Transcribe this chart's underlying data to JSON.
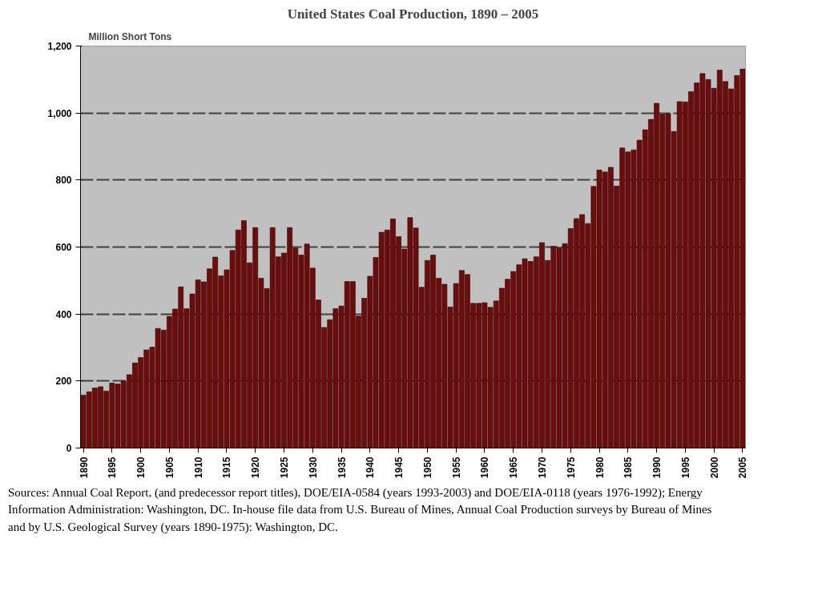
{
  "chart_data": {
    "type": "bar",
    "title": "United States Coal Production, 1890 – 2005",
    "ylabel": "Million Short Tons",
    "x": [
      1890,
      1891,
      1892,
      1893,
      1894,
      1895,
      1896,
      1897,
      1898,
      1899,
      1900,
      1901,
      1902,
      1903,
      1904,
      1905,
      1906,
      1907,
      1908,
      1909,
      1910,
      1911,
      1912,
      1913,
      1914,
      1915,
      1916,
      1917,
      1918,
      1919,
      1920,
      1921,
      1922,
      1923,
      1924,
      1925,
      1926,
      1927,
      1928,
      1929,
      1930,
      1931,
      1932,
      1933,
      1934,
      1935,
      1936,
      1937,
      1938,
      1939,
      1940,
      1941,
      1942,
      1943,
      1944,
      1945,
      1946,
      1947,
      1948,
      1949,
      1950,
      1951,
      1952,
      1953,
      1954,
      1955,
      1956,
      1957,
      1958,
      1959,
      1960,
      1961,
      1962,
      1963,
      1964,
      1965,
      1966,
      1967,
      1968,
      1969,
      1970,
      1971,
      1972,
      1973,
      1974,
      1975,
      1976,
      1977,
      1978,
      1979,
      1980,
      1981,
      1982,
      1983,
      1984,
      1985,
      1986,
      1987,
      1988,
      1989,
      1990,
      1991,
      1992,
      1993,
      1994,
      1995,
      1996,
      1997,
      1998,
      1999,
      2000,
      2001,
      2002,
      2003,
      2004,
      2005
    ],
    "values": [
      158,
      168,
      179,
      183,
      170,
      194,
      191,
      200,
      219,
      254,
      270,
      293,
      301,
      357,
      352,
      393,
      415,
      481,
      416,
      460,
      502,
      496,
      535,
      570,
      514,
      532,
      590,
      651,
      679,
      553,
      658,
      507,
      476,
      658,
      571,
      582,
      658,
      597,
      576,
      609,
      537,
      442,
      360,
      383,
      416,
      424,
      497,
      497,
      394,
      447,
      513,
      569,
      644,
      651,
      684,
      631,
      594,
      688,
      657,
      480,
      560,
      576,
      507,
      489,
      421,
      491,
      530,
      518,
      432,
      432,
      434,
      420,
      439,
      477,
      504,
      527,
      547,
      565,
      557,
      571,
      613,
      560,
      602,
      599,
      610,
      655,
      685,
      697,
      670,
      781,
      830,
      824,
      838,
      782,
      896,
      884,
      890,
      919,
      950,
      981,
      1029,
      996,
      998,
      945,
      1034,
      1033,
      1064,
      1090,
      1118,
      1100,
      1074,
      1128,
      1094,
      1072,
      1112,
      1131
    ],
    "color": "#6e0b0b",
    "xlim": [
      1889.5,
      2005.5
    ],
    "xticks": [
      1890,
      1895,
      1900,
      1905,
      1910,
      1915,
      1920,
      1925,
      1930,
      1935,
      1940,
      1945,
      1950,
      1955,
      1960,
      1965,
      1970,
      1975,
      1980,
      1985,
      1990,
      1995,
      2000,
      2005
    ],
    "ylim": [
      0,
      1200
    ],
    "yticks": [
      0,
      200,
      400,
      600,
      800,
      {
        "value": 1000,
        "label": "1,000"
      },
      {
        "value": 1200,
        "label": "1,200"
      }
    ],
    "grid": "y",
    "line_style": "dashed",
    "annotations": [
      "Sources:  Annual Coal Report, (and predecessor report titles), DOE/EIA-0584 (years 1993-2003) and DOE/EIA-0118 (years 1976-1992); Energy Information Administration:  Washington, DC.  In-house file data from U.S. Bureau of Mines, Annual Coal Production surveys by Bureau of Mines and by U.S. Geological Survey (years 1890-1975):  Washington, DC."
    ]
  }
}
